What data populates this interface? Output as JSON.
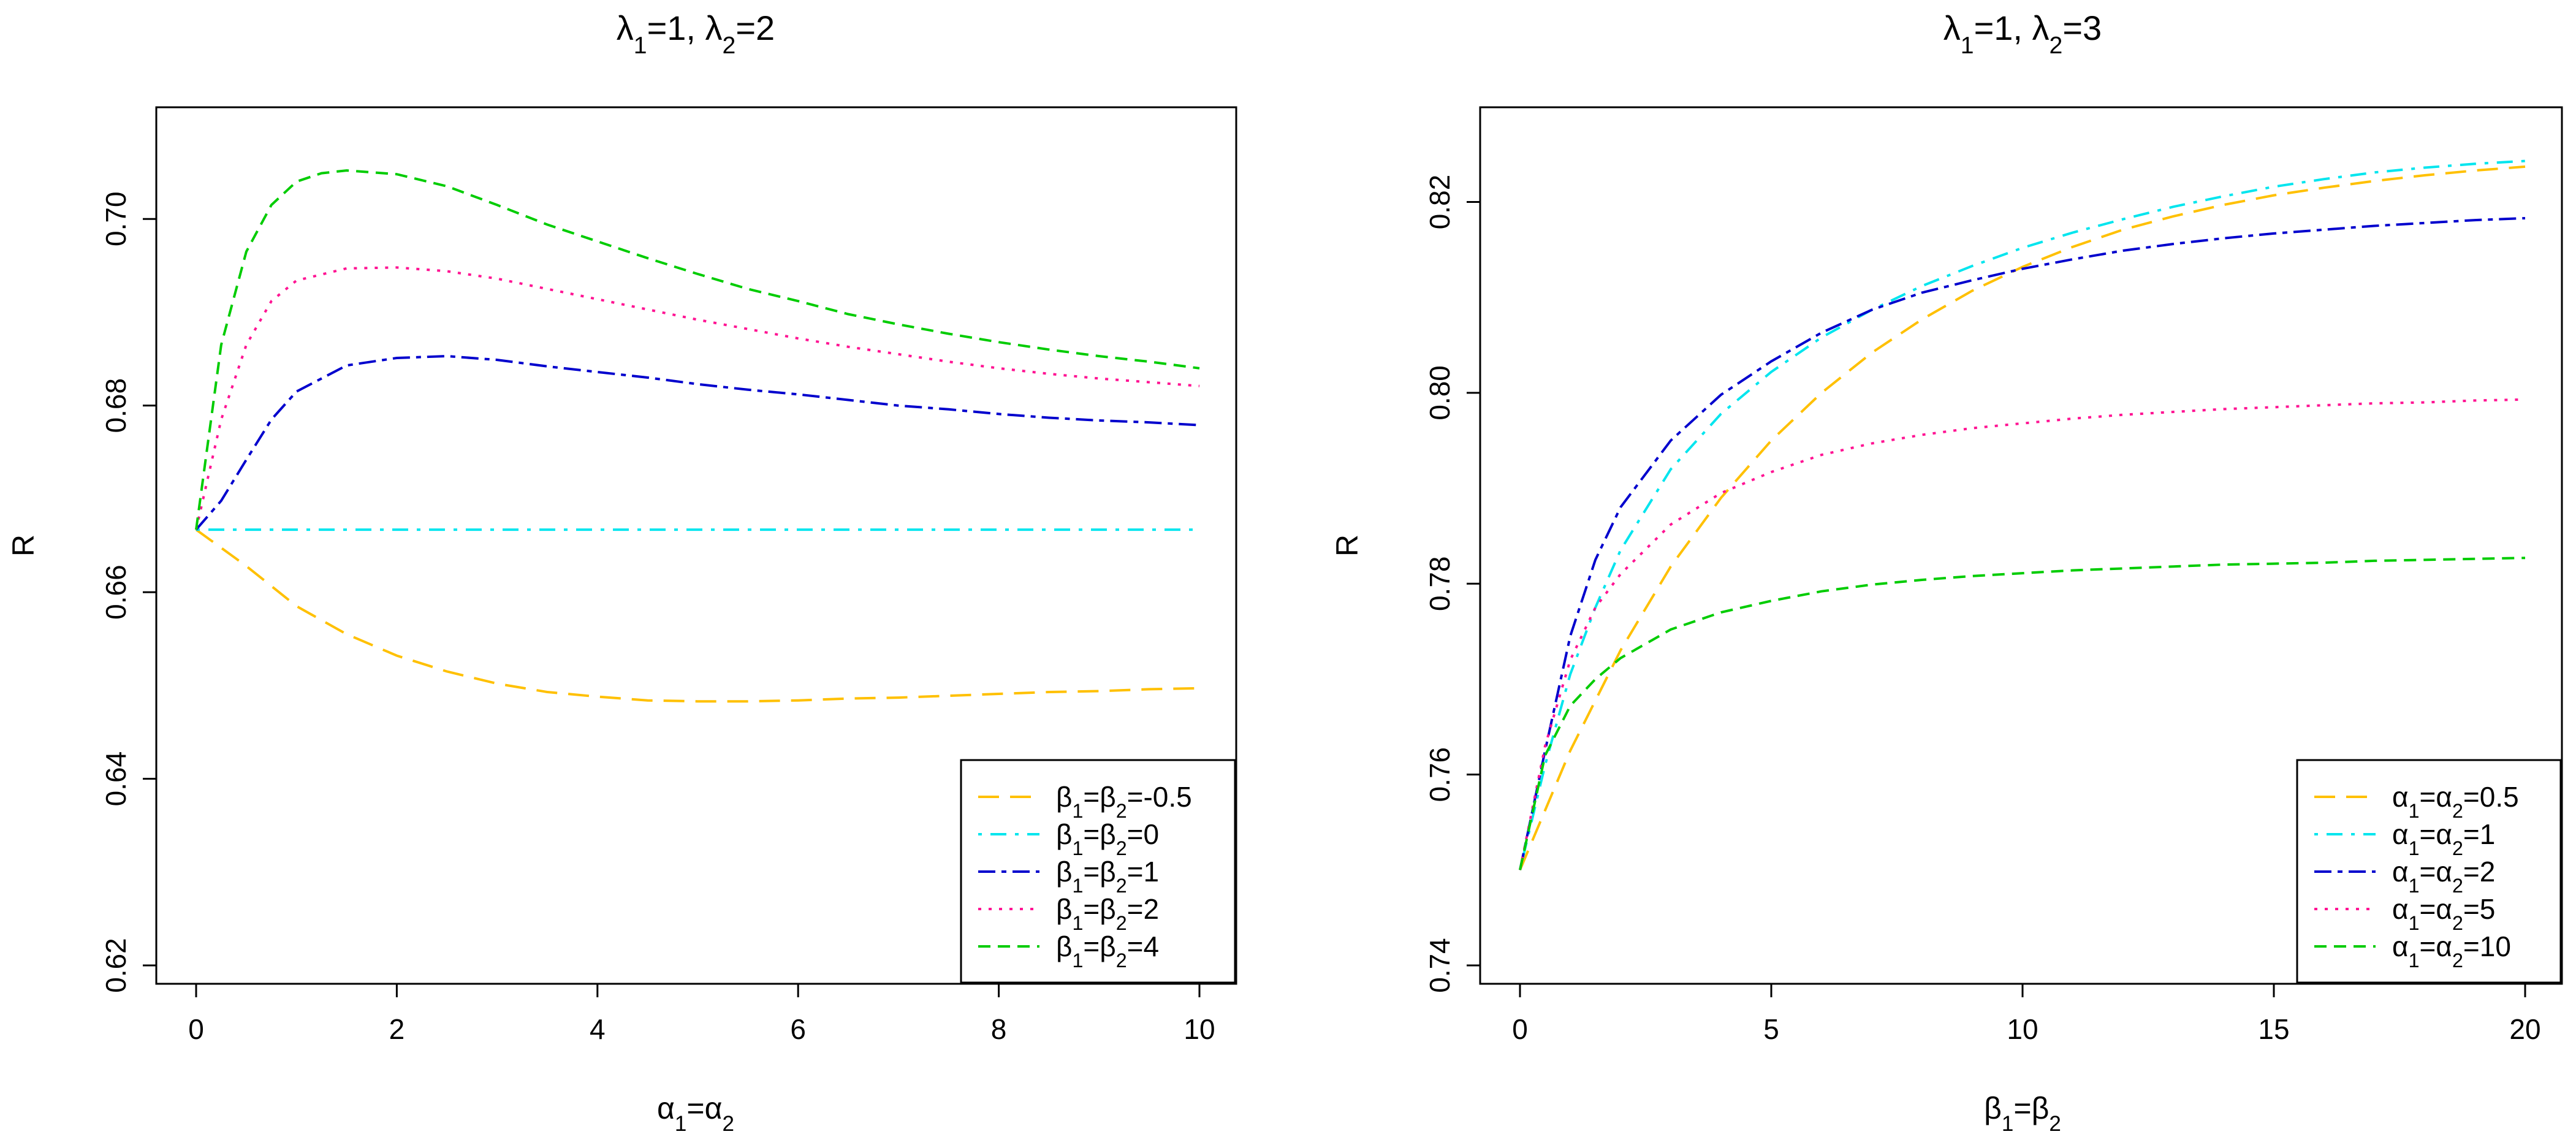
{
  "chart_data": [
    {
      "type": "line",
      "title": "λ1=1, λ2=2",
      "xlabel": "α1=α2",
      "ylabel": "R",
      "xlim": [
        0,
        10
      ],
      "ylim": [
        0.62,
        0.71
      ],
      "xticks": [
        0,
        2,
        4,
        6,
        8,
        10
      ],
      "yticks": [
        0.62,
        0.64,
        0.66,
        0.68,
        0.7
      ],
      "ytick_labels": [
        "0.62",
        "0.64",
        "0.66",
        "0.68",
        "0.70"
      ],
      "legend_position": "bottom-right",
      "series": [
        {
          "name": "β1=β2=-0.5",
          "color": "#FFC000",
          "dash": "long",
          "x": [
            0,
            0.5,
            1,
            1.5,
            2,
            2.5,
            3,
            3.5,
            4,
            4.5,
            5,
            5.5,
            6,
            6.5,
            7,
            7.5,
            8,
            8.5,
            9,
            9.5,
            10
          ],
          "y": [
            0.6667,
            0.6628,
            0.6585,
            0.6555,
            0.6532,
            0.6515,
            0.6502,
            0.6493,
            0.6488,
            0.6484,
            0.6483,
            0.6483,
            0.6484,
            0.6486,
            0.6487,
            0.6489,
            0.6491,
            0.6493,
            0.6494,
            0.6496,
            0.6497
          ]
        },
        {
          "name": "β1=β2=0",
          "color": "#00E5EE",
          "dash": "dotdash",
          "x": [
            0,
            10
          ],
          "y": [
            0.6667,
            0.6667
          ]
        },
        {
          "name": "β1=β2=1",
          "color": "#0000CD",
          "dash": "twodash",
          "x": [
            0,
            0.25,
            0.5,
            0.75,
            1,
            1.5,
            2,
            2.5,
            3,
            3.5,
            4,
            4.5,
            5,
            5.5,
            6,
            6.5,
            7,
            7.5,
            8,
            8.5,
            9,
            9.5,
            10
          ],
          "y": [
            0.6667,
            0.6698,
            0.6742,
            0.6785,
            0.6815,
            0.6843,
            0.6851,
            0.6853,
            0.6849,
            0.6842,
            0.6836,
            0.683,
            0.6823,
            0.6817,
            0.6812,
            0.6806,
            0.68,
            0.6796,
            0.6791,
            0.6787,
            0.6784,
            0.6782,
            0.6779
          ]
        },
        {
          "name": "β1=β2=2",
          "color": "#FF1493",
          "dash": "dotted",
          "x": [
            0,
            0.25,
            0.5,
            0.75,
            1,
            1.5,
            2,
            2.5,
            3,
            3.5,
            4,
            4.5,
            5,
            5.5,
            6,
            6.5,
            7,
            7.5,
            8,
            8.5,
            9,
            9.5,
            10
          ],
          "y": [
            0.6667,
            0.6785,
            0.6865,
            0.6912,
            0.6934,
            0.6947,
            0.6948,
            0.6944,
            0.6936,
            0.6925,
            0.6914,
            0.6903,
            0.6892,
            0.6882,
            0.6872,
            0.6863,
            0.6855,
            0.6847,
            0.684,
            0.6834,
            0.6829,
            0.6825,
            0.6821
          ]
        },
        {
          "name": "β1=β2=4",
          "color": "#00CC00",
          "dash": "dashed",
          "x": [
            0,
            0.25,
            0.5,
            0.75,
            1,
            1.25,
            1.5,
            2,
            2.5,
            3,
            3.5,
            4,
            4.5,
            5,
            5.5,
            6,
            6.5,
            7,
            7.5,
            8,
            8.5,
            9,
            9.5,
            10
          ],
          "y": [
            0.6667,
            0.6865,
            0.6965,
            0.7015,
            0.704,
            0.7049,
            0.7052,
            0.7048,
            0.7035,
            0.7015,
            0.6994,
            0.6976,
            0.6958,
            0.6941,
            0.6925,
            0.6912,
            0.6898,
            0.6887,
            0.6877,
            0.6868,
            0.686,
            0.6853,
            0.6847,
            0.684
          ]
        }
      ]
    },
    {
      "type": "line",
      "title": "λ1=1, λ2=3",
      "xlabel": "β1=β2",
      "ylabel": "R",
      "xlim": [
        0,
        20
      ],
      "ylim": [
        0.74,
        0.828
      ],
      "xticks": [
        0,
        5,
        10,
        15,
        20
      ],
      "yticks": [
        0.74,
        0.76,
        0.78,
        0.8,
        0.82
      ],
      "ytick_labels": [
        "0.74",
        "0.76",
        "0.78",
        "0.80",
        "0.82"
      ],
      "legend_position": "bottom-right",
      "series": [
        {
          "name": "α1=α2=0.5",
          "color": "#FFC000",
          "dash": "long",
          "x": [
            0,
            1,
            2,
            3,
            4,
            5,
            6,
            7,
            8,
            9,
            10,
            11,
            12,
            13,
            14,
            15,
            16,
            17,
            18,
            19,
            20
          ],
          "y": [
            0.75,
            0.7625,
            0.773,
            0.7818,
            0.789,
            0.795,
            0.8,
            0.8042,
            0.8077,
            0.8107,
            0.8132,
            0.8153,
            0.8171,
            0.8185,
            0.8197,
            0.8207,
            0.8215,
            0.8222,
            0.8228,
            0.8233,
            0.8237
          ]
        },
        {
          "name": "α1=α2=1",
          "color": "#00E5EE",
          "dash": "dotdash",
          "x": [
            0,
            0.5,
            1,
            1.5,
            2,
            3,
            4,
            5,
            6,
            7,
            8,
            9,
            10,
            11,
            12,
            13,
            14,
            15,
            16,
            17,
            18,
            19,
            20
          ],
          "y": [
            0.75,
            0.761,
            0.7705,
            0.7775,
            0.7835,
            0.792,
            0.7978,
            0.8022,
            0.8058,
            0.8087,
            0.8112,
            0.8133,
            0.8152,
            0.8168,
            0.8182,
            0.8195,
            0.8206,
            0.8216,
            0.8224,
            0.8231,
            0.8236,
            0.824,
            0.8243
          ]
        },
        {
          "name": "α1=α2=2",
          "color": "#0000CD",
          "dash": "twodash",
          "x": [
            0,
            0.5,
            1,
            1.5,
            2,
            3,
            4,
            5,
            6,
            7,
            8,
            9,
            10,
            11,
            12,
            13,
            14,
            15,
            16,
            17,
            18,
            19,
            20
          ],
          "y": [
            0.75,
            0.7625,
            0.7745,
            0.7825,
            0.788,
            0.795,
            0.7998,
            0.8033,
            0.8063,
            0.8087,
            0.8105,
            0.8118,
            0.813,
            0.814,
            0.8149,
            0.8156,
            0.8162,
            0.8167,
            0.8171,
            0.8175,
            0.8178,
            0.8181,
            0.8183
          ]
        },
        {
          "name": "α1=α2=5",
          "color": "#FF1493",
          "dash": "dotted",
          "x": [
            0,
            0.5,
            1,
            1.5,
            2,
            3,
            4,
            5,
            6,
            7,
            8,
            9,
            10,
            11,
            12,
            13,
            14,
            15,
            16,
            17,
            18,
            19,
            20
          ],
          "y": [
            0.75,
            0.763,
            0.772,
            0.7775,
            0.781,
            0.7862,
            0.7895,
            0.7917,
            0.7935,
            0.7947,
            0.7956,
            0.7963,
            0.7968,
            0.7973,
            0.7977,
            0.798,
            0.7983,
            0.7985,
            0.7987,
            0.7989,
            0.799,
            0.7992,
            0.7993
          ]
        },
        {
          "name": "α1=α2=10",
          "color": "#00CC00",
          "dash": "dashed",
          "x": [
            0,
            0.5,
            1,
            1.5,
            2,
            3,
            4,
            5,
            6,
            7,
            8,
            9,
            10,
            11,
            12,
            13,
            14,
            15,
            16,
            17,
            18,
            19,
            20
          ],
          "y": [
            0.75,
            0.762,
            0.7672,
            0.77,
            0.7722,
            0.7752,
            0.777,
            0.7782,
            0.7792,
            0.7799,
            0.7804,
            0.7808,
            0.7811,
            0.7814,
            0.7816,
            0.7818,
            0.782,
            0.7821,
            0.7822,
            0.7824,
            0.7825,
            0.7826,
            0.7827
          ]
        }
      ]
    }
  ]
}
